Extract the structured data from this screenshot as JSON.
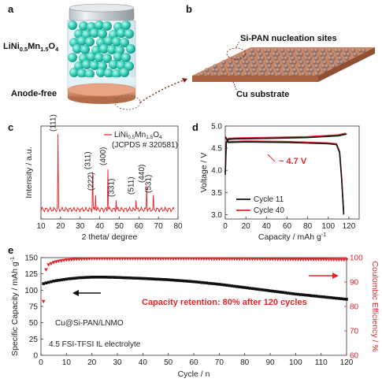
{
  "panels": {
    "a": {
      "letter": "a",
      "top_label_main": "LiNi",
      "top_sub1": "0.5",
      "top_mid": "Mn",
      "top_sub2": "1.5",
      "top_end": "O",
      "top_sub3": "4",
      "bottom_label": "Anode-free"
    },
    "b": {
      "letter": "b",
      "label1": "Si-PAN nucleation sites",
      "label2": "Cu substrate"
    },
    "c": {
      "letter": "c",
      "legend_main": "LiNi",
      "legend_sub1": "0.5",
      "legend_mid": "Mn",
      "legend_sub2": "1.5",
      "legend_end": "O",
      "legend_sub3": "4",
      "legend_ref": "(JCPDS # 320581)"
    },
    "d": {
      "letter": "d",
      "annotation": "~ 4.7 V"
    },
    "e": {
      "letter": "e",
      "annotation": "Capacity retention: 80% after 120 cycles",
      "note1": "Cu@Si-PAN/LNMO",
      "note2": "4.5 FSI-TFSI IL electrolyte"
    }
  },
  "colors": {
    "red": "#e0262b",
    "black": "#111111",
    "cyan": "#3fd6c2",
    "copper": "#d9906b"
  },
  "chart_data": [
    {
      "id": "c",
      "type": "line",
      "title": "",
      "xlabel": "2 theta/ degree",
      "ylabel": "Intensity / a.u.",
      "xlim": [
        10,
        80
      ],
      "xticks": [
        10,
        20,
        30,
        40,
        50,
        60,
        70,
        80
      ],
      "series": [
        {
          "name": "LiNi0.5Mn1.5O4 (JCPDS # 320581)",
          "color": "#e0262b"
        }
      ],
      "peaks": [
        {
          "x": 18.7,
          "h": 0.95,
          "label": "(111)"
        },
        {
          "x": 36.4,
          "h": 0.47,
          "label": "(311)"
        },
        {
          "x": 37.9,
          "h": 0.2,
          "label": "(222)"
        },
        {
          "x": 44.2,
          "h": 0.52,
          "label": "(400)"
        },
        {
          "x": 48.4,
          "h": 0.12,
          "label": "(331)"
        },
        {
          "x": 58.5,
          "h": 0.15,
          "label": "(511)"
        },
        {
          "x": 64.0,
          "h": 0.3,
          "label": "(440)"
        },
        {
          "x": 67.4,
          "h": 0.17,
          "label": "(531)"
        }
      ],
      "legend": "top-right"
    },
    {
      "id": "d",
      "type": "line",
      "title": "",
      "xlabel": "Capacity / mAh g-1",
      "ylabel": "Voltage / V",
      "xlim": [
        0,
        130
      ],
      "ylim": [
        2.9,
        5.0
      ],
      "xticks": [
        0,
        20,
        40,
        60,
        80,
        100,
        120
      ],
      "yticks": [
        3.0,
        3.5,
        4.0,
        4.5,
        5.0
      ],
      "series": [
        {
          "name": "Cycle 11",
          "color": "#111111",
          "charge": [
            [
              0,
              3.9
            ],
            [
              1,
              4.62
            ],
            [
              3,
              4.7
            ],
            [
              10,
              4.71
            ],
            [
              40,
              4.72
            ],
            [
              80,
              4.74
            ],
            [
              110,
              4.78
            ],
            [
              118,
              4.82
            ]
          ],
          "discharge": [
            [
              0,
              4.75
            ],
            [
              3,
              4.63
            ],
            [
              20,
              4.64
            ],
            [
              60,
              4.63
            ],
            [
              100,
              4.6
            ],
            [
              108,
              4.58
            ],
            [
              111,
              4.4
            ],
            [
              113,
              3.8
            ],
            [
              115,
              3.0
            ]
          ]
        },
        {
          "name": "Cycle 40",
          "color": "#e0262b",
          "charge": [
            [
              0,
              3.95
            ],
            [
              1,
              4.64
            ],
            [
              3,
              4.72
            ],
            [
              10,
              4.73
            ],
            [
              40,
              4.74
            ],
            [
              80,
              4.76
            ],
            [
              110,
              4.8
            ],
            [
              117,
              4.84
            ]
          ],
          "discharge": [
            [
              0,
              4.77
            ],
            [
              3,
              4.65
            ],
            [
              20,
              4.66
            ],
            [
              60,
              4.65
            ],
            [
              100,
              4.62
            ],
            [
              108,
              4.6
            ],
            [
              111,
              4.42
            ],
            [
              113,
              3.82
            ],
            [
              115,
              3.02
            ]
          ]
        }
      ],
      "legend": "bottom-left"
    },
    {
      "id": "e",
      "type": "scatter",
      "title": "",
      "xlabel": "Cycle / n",
      "ylabel_left": "Specific Capacity / mAh g-1",
      "ylabel_right": "Coulombic Efficiency / %",
      "xlim": [
        0,
        120
      ],
      "ylim_left": [
        0,
        150
      ],
      "ylim_right": [
        60,
        100
      ],
      "xticks": [
        0,
        10,
        20,
        30,
        40,
        50,
        60,
        70,
        80,
        90,
        100,
        110,
        120
      ],
      "yticks_left": [
        0,
        25,
        50,
        75,
        100,
        125,
        150
      ],
      "yticks_right": [
        60,
        70,
        80,
        90,
        100
      ],
      "series": [
        {
          "name": "Specific Capacity",
          "axis": "left",
          "color": "#111111",
          "x": [
            1,
            5,
            10,
            15,
            20,
            25,
            30,
            40,
            50,
            60,
            70,
            80,
            90,
            100,
            110,
            120
          ],
          "y": [
            110,
            114,
            117,
            119,
            120,
            120,
            119.5,
            118,
            116,
            113,
            109,
            104,
            99,
            94,
            90,
            86
          ]
        },
        {
          "name": "Coulombic Efficiency",
          "axis": "right",
          "color": "#e0262b",
          "x": [
            1,
            2,
            3,
            4,
            5,
            7,
            10,
            15,
            20,
            30,
            40,
            50,
            60,
            70,
            80,
            90,
            100,
            110,
            120
          ],
          "y": [
            82,
            95,
            97,
            97.5,
            98,
            98.5,
            99,
            99.3,
            99.5,
            99.5,
            99.5,
            99.5,
            99.5,
            99.4,
            99.4,
            99.3,
            99.2,
            99.2,
            99.1
          ]
        }
      ]
    }
  ]
}
